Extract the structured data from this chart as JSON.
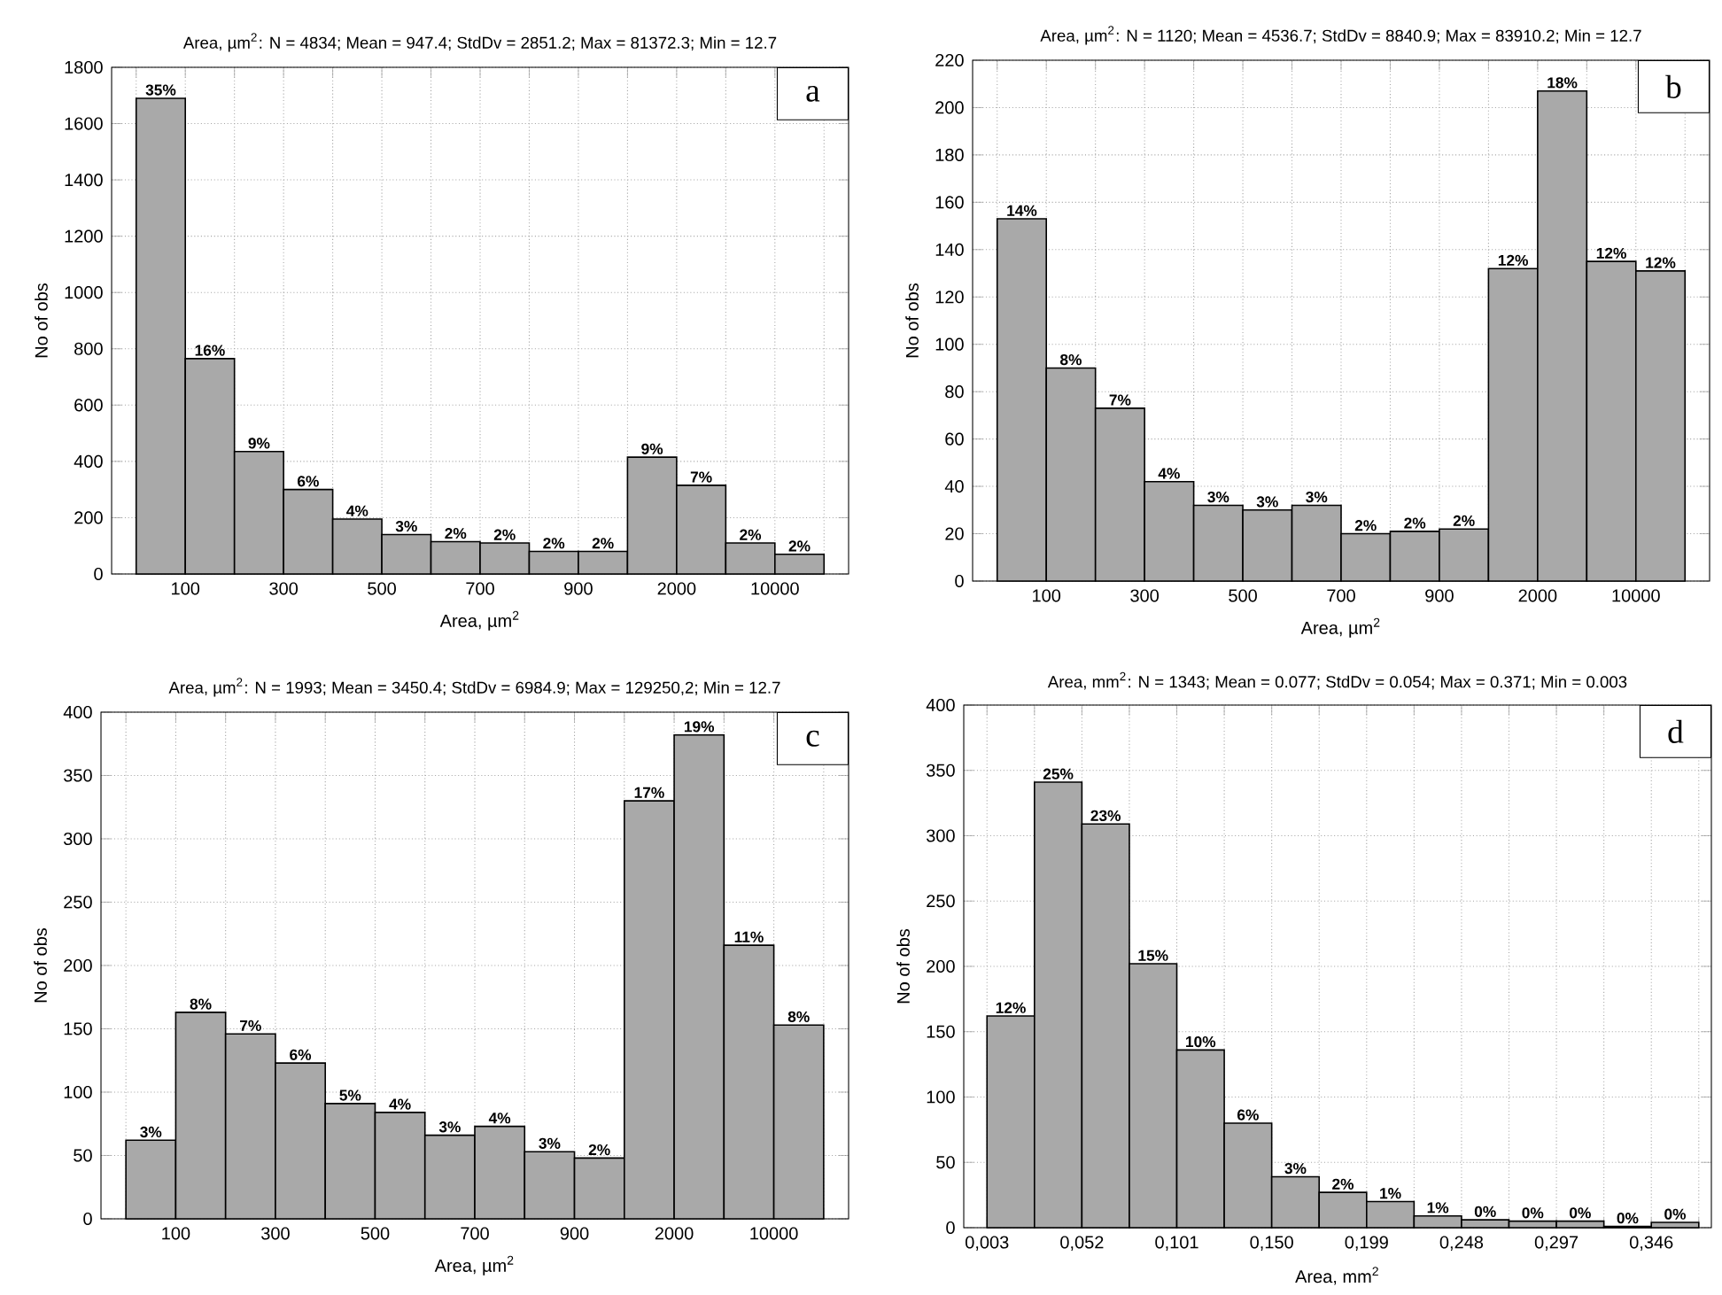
{
  "chart_data": [
    {
      "type": "bar",
      "title": "Area, µm$^{2}$:   N = 4834; Mean = 947.4; StdDv = 2851.2; Max = 81372.3; Min = 12.7",
      "xlabel": "Area, µm$^{2}$",
      "ylabel": "No of obs",
      "annotations": [
        "a",
        {
          "text": "35%",
          "x": "100",
          "y": 1690
        },
        {
          "text": "16%",
          "y": 765
        },
        {
          "text": "9%",
          "x": "300",
          "y": 435
        },
        {
          "text": "6%",
          "y": 300
        },
        {
          "text": "4%",
          "x": "500",
          "y": 195
        },
        {
          "text": "3%",
          "y": 140
        },
        {
          "text": "2%",
          "x": "700",
          "y": 115
        },
        {
          "text": "2%",
          "y": 110
        },
        {
          "text": "2%",
          "x": "900",
          "y": 80
        },
        {
          "text": "2%",
          "y": 80
        },
        {
          "text": "9%",
          "x": "2000",
          "y": 415
        },
        {
          "text": "7%",
          "y": 315
        },
        {
          "text": "2%",
          "x": "10000",
          "y": 110
        },
        {
          "text": "2%",
          "y": 70
        }
      ],
      "categories": [
        "100",
        null,
        "300",
        null,
        "500",
        null,
        "700",
        null,
        "900",
        null,
        "2000",
        null,
        "10000",
        null
      ],
      "values": [
        1690,
        765,
        435,
        300,
        195,
        140,
        115,
        110,
        80,
        80,
        415,
        315,
        110,
        70
      ],
      "color": "#a9a9a9",
      "grid": true,
      "ylim": [
        0,
        1800
      ],
      "yticks": [
        0,
        200,
        400,
        600,
        800,
        1000,
        1200,
        1400,
        1600,
        1800
      ]
    },
    {
      "type": "bar",
      "title": "Area, µm$^{2}$:   N = 1120; Mean = 4536.7; StdDv = 8840.9; Max = 83910.2; Min = 12.7",
      "xlabel": "Area, µm$^{2}$",
      "ylabel": "No of obs",
      "annotations": [
        "b",
        {
          "text": "14%",
          "x": "100",
          "y": 153
        },
        {
          "text": "8%",
          "y": 90
        },
        {
          "text": "7%",
          "x": "300",
          "y": 73
        },
        {
          "text": "4%",
          "y": 42
        },
        {
          "text": "3%",
          "x": "500",
          "y": 32
        },
        {
          "text": "3%",
          "y": 30
        },
        {
          "text": "3%",
          "x": "700",
          "y": 32
        },
        {
          "text": "2%",
          "y": 20
        },
        {
          "text": "2%",
          "x": "900",
          "y": 21
        },
        {
          "text": "2%",
          "y": 22
        },
        {
          "text": "12%",
          "x": "2000",
          "y": 132
        },
        {
          "text": "18%",
          "y": 207
        },
        {
          "text": "12%",
          "x": "10000",
          "y": 135
        },
        {
          "text": "12%",
          "y": 131
        }
      ],
      "categories": [
        "100",
        null,
        "300",
        null,
        "500",
        null,
        "700",
        null,
        "900",
        null,
        "2000",
        null,
        "10000",
        null
      ],
      "values": [
        153,
        90,
        73,
        42,
        32,
        30,
        32,
        20,
        21,
        22,
        132,
        207,
        135,
        131
      ],
      "color": "#a9a9a9",
      "grid": true,
      "ylim": [
        0,
        220
      ],
      "yticks": [
        0,
        20,
        40,
        60,
        80,
        100,
        120,
        140,
        160,
        180,
        200,
        220
      ]
    },
    {
      "type": "bar",
      "title": "Area, µm$^{2}$:   N = 1993; Mean = 3450.4; StdDv = 6984.9; Max = 129250,2; Min = 12.7",
      "xlabel": "Area, µm$^{2}$",
      "ylabel": "No of obs",
      "annotations": [
        "c",
        {
          "text": "3%",
          "x": "100",
          "y": 62
        },
        {
          "text": "8%",
          "y": 163
        },
        {
          "text": "7%",
          "x": "300",
          "y": 146
        },
        {
          "text": "6%",
          "y": 123
        },
        {
          "text": "5%",
          "x": "500",
          "y": 91
        },
        {
          "text": "4%",
          "y": 84
        },
        {
          "text": "3%",
          "x": "700",
          "y": 66
        },
        {
          "text": "4%",
          "y": 73
        },
        {
          "text": "3%",
          "x": "900",
          "y": 53
        },
        {
          "text": "2%",
          "y": 48
        },
        {
          "text": "17%",
          "x": "2000",
          "y": 330
        },
        {
          "text": "19%",
          "y": 382
        },
        {
          "text": "11%",
          "x": "10000",
          "y": 216
        },
        {
          "text": "8%",
          "y": 153
        }
      ],
      "categories": [
        "100",
        null,
        "300",
        null,
        "500",
        null,
        "700",
        null,
        "900",
        null,
        "2000",
        null,
        "10000",
        null
      ],
      "values": [
        62,
        163,
        146,
        123,
        91,
        84,
        66,
        73,
        53,
        48,
        330,
        382,
        216,
        153
      ],
      "color": "#a9a9a9",
      "grid": true,
      "ylim": [
        0,
        400
      ],
      "yticks": [
        0,
        50,
        100,
        150,
        200,
        250,
        300,
        350,
        400
      ]
    },
    {
      "type": "histogram",
      "title": "Area, mm$^{2}$:   N = 1343; Mean = 0.077; StdDv = 0.054; Max = 0.371; Min = 0.003",
      "xlabel": "Area, mm$^{2}$",
      "ylabel": "No of obs",
      "annotations": [
        "d",
        {
          "text": "12%",
          "x": 0.01525,
          "y": 162
        },
        {
          "text": "25%",
          "x": 0.03975,
          "y": 341
        },
        {
          "text": "23%",
          "x": 0.06425,
          "y": 309
        },
        {
          "text": "15%",
          "x": 0.08875,
          "y": 202
        },
        {
          "text": "10%",
          "x": 0.11325,
          "y": 136
        },
        {
          "text": "6%",
          "x": 0.13775,
          "y": 80
        },
        {
          "text": "3%",
          "x": 0.16225,
          "y": 39
        },
        {
          "text": "2%",
          "x": 0.18675,
          "y": 27
        },
        {
          "text": "1%",
          "x": 0.21125,
          "y": 20
        },
        {
          "text": "1%",
          "x": 0.23575,
          "y": 9
        },
        {
          "text": "0%",
          "x": 0.26025,
          "y": 6
        },
        {
          "text": "0%",
          "x": 0.28475,
          "y": 5
        },
        {
          "text": "0%",
          "x": 0.30925,
          "y": 5
        },
        {
          "text": "0%",
          "x": 0.33375,
          "y": 1
        },
        {
          "text": "0%",
          "x": 0.35825,
          "y": 4
        }
      ],
      "bins": [
        0.003,
        0.0275,
        0.052,
        0.0765,
        0.101,
        0.1255,
        0.15,
        0.1745,
        0.199,
        0.2235,
        0.248,
        0.2725,
        0.297,
        0.3215,
        0.346,
        0.3705
      ],
      "values": [
        162,
        341,
        309,
        202,
        136,
        80,
        39,
        27,
        20,
        9,
        6,
        5,
        5,
        1,
        4
      ],
      "color": "#a9a9a9",
      "grid": true,
      "xlim": [
        -0.009,
        0.377
      ],
      "xticks": [
        {
          "value": 0.003,
          "label": "0,003"
        },
        {
          "value": 0.0275,
          "label": null
        },
        {
          "value": 0.052,
          "label": "0,052"
        },
        {
          "value": 0.0765,
          "label": null
        },
        {
          "value": 0.101,
          "label": "0,101"
        },
        {
          "value": 0.1255,
          "label": null
        },
        {
          "value": 0.15,
          "label": "0,150"
        },
        {
          "value": 0.1745,
          "label": null
        },
        {
          "value": 0.199,
          "label": "0,199"
        },
        {
          "value": 0.2235,
          "label": null
        },
        {
          "value": 0.248,
          "label": "0,248"
        },
        {
          "value": 0.2725,
          "label": null
        },
        {
          "value": 0.297,
          "label": "0,297"
        },
        {
          "value": 0.3215,
          "label": null
        },
        {
          "value": 0.346,
          "label": "0,346"
        },
        {
          "value": 0.3705,
          "label": null
        }
      ],
      "ylim": [
        0,
        400
      ],
      "yticks": [
        0,
        50,
        100,
        150,
        200,
        250,
        300,
        350,
        400
      ]
    }
  ]
}
